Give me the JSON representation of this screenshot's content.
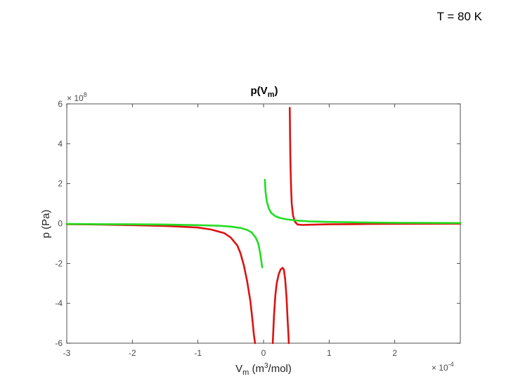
{
  "corner_label": "T = 80 K",
  "chart_data": {
    "type": "line",
    "title": "p(V",
    "title_sub": "m",
    "title_close": ")",
    "xlabel": "V",
    "xlabel_sub": "m",
    "xlabel_paren_open": " (m",
    "xlabel_sup": "3",
    "xlabel_rest": "/mol)",
    "ylabel": "p (Pa)",
    "x_exponent_prefix": "× 10",
    "x_exponent": "-4",
    "y_exponent_prefix": "× 10",
    "y_exponent": "8",
    "xlim": [
      -3,
      3
    ],
    "ylim": [
      -6,
      6
    ],
    "xticks": [
      -3,
      -2,
      -1,
      0,
      1,
      2
    ],
    "xtick_labels": [
      "-3",
      "-2",
      "-1",
      "0",
      "1",
      "2"
    ],
    "yticks": [
      -6,
      -4,
      -2,
      0,
      2,
      4,
      6
    ],
    "ytick_labels": [
      "-6",
      "-4",
      "-2",
      "0",
      "2",
      "4",
      "6"
    ],
    "grid": false,
    "series": [
      {
        "color": "#dd1111",
        "segments": [
          {
            "x": [
              -3.0,
              -2.5,
              -2.0,
              -1.5,
              -1.0,
              -0.8,
              -0.6,
              -0.5,
              -0.4,
              -0.35,
              -0.3,
              -0.25,
              -0.2,
              -0.17,
              -0.15,
              -0.13
            ],
            "y": [
              -0.03,
              -0.05,
              -0.08,
              -0.12,
              -0.2,
              -0.3,
              -0.48,
              -0.7,
              -1.1,
              -1.5,
              -2.1,
              -2.9,
              -3.9,
              -4.8,
              -5.5,
              -6.0
            ]
          },
          {
            "x": [
              0.14,
              0.16,
              0.18,
              0.2,
              0.23,
              0.26,
              0.29,
              0.31,
              0.33,
              0.35,
              0.37,
              0.38,
              0.385
            ],
            "y": [
              -6.0,
              -4.6,
              -3.6,
              -3.0,
              -2.55,
              -2.3,
              -2.22,
              -2.3,
              -2.8,
              -3.7,
              -5.0,
              -5.6,
              -6.0
            ]
          },
          {
            "x": [
              0.4,
              0.405,
              0.41,
              0.42,
              0.43,
              0.45,
              0.48,
              0.52,
              0.6,
              0.7,
              0.8,
              1.0,
              1.3,
              1.6,
              2.0,
              2.5,
              3.0
            ],
            "y": [
              5.8,
              4.2,
              3.0,
              1.8,
              1.0,
              0.4,
              0.08,
              -0.05,
              -0.07,
              -0.06,
              -0.05,
              -0.04,
              -0.03,
              -0.02,
              -0.015,
              -0.01,
              -0.008
            ]
          }
        ]
      },
      {
        "color": "#22dd22",
        "segments": [
          {
            "x": [
              -3.0,
              -2.5,
              -2.0,
              -1.5,
              -1.0,
              -0.7,
              -0.5,
              -0.35,
              -0.25,
              -0.18,
              -0.12,
              -0.08,
              -0.05,
              -0.02
            ],
            "y": [
              -0.02,
              -0.03,
              -0.04,
              -0.05,
              -0.08,
              -0.11,
              -0.15,
              -0.22,
              -0.32,
              -0.45,
              -0.7,
              -1.0,
              -1.5,
              -2.2
            ]
          },
          {
            "x": [
              0.02,
              0.03,
              0.05,
              0.08,
              0.12,
              0.18,
              0.25,
              0.35,
              0.5,
              0.7,
              1.0,
              1.5,
              2.0,
              2.5,
              3.0
            ],
            "y": [
              2.2,
              1.6,
              1.1,
              0.75,
              0.52,
              0.37,
              0.28,
              0.21,
              0.15,
              0.11,
              0.08,
              0.055,
              0.04,
              0.03,
              0.025
            ]
          }
        ]
      }
    ]
  }
}
